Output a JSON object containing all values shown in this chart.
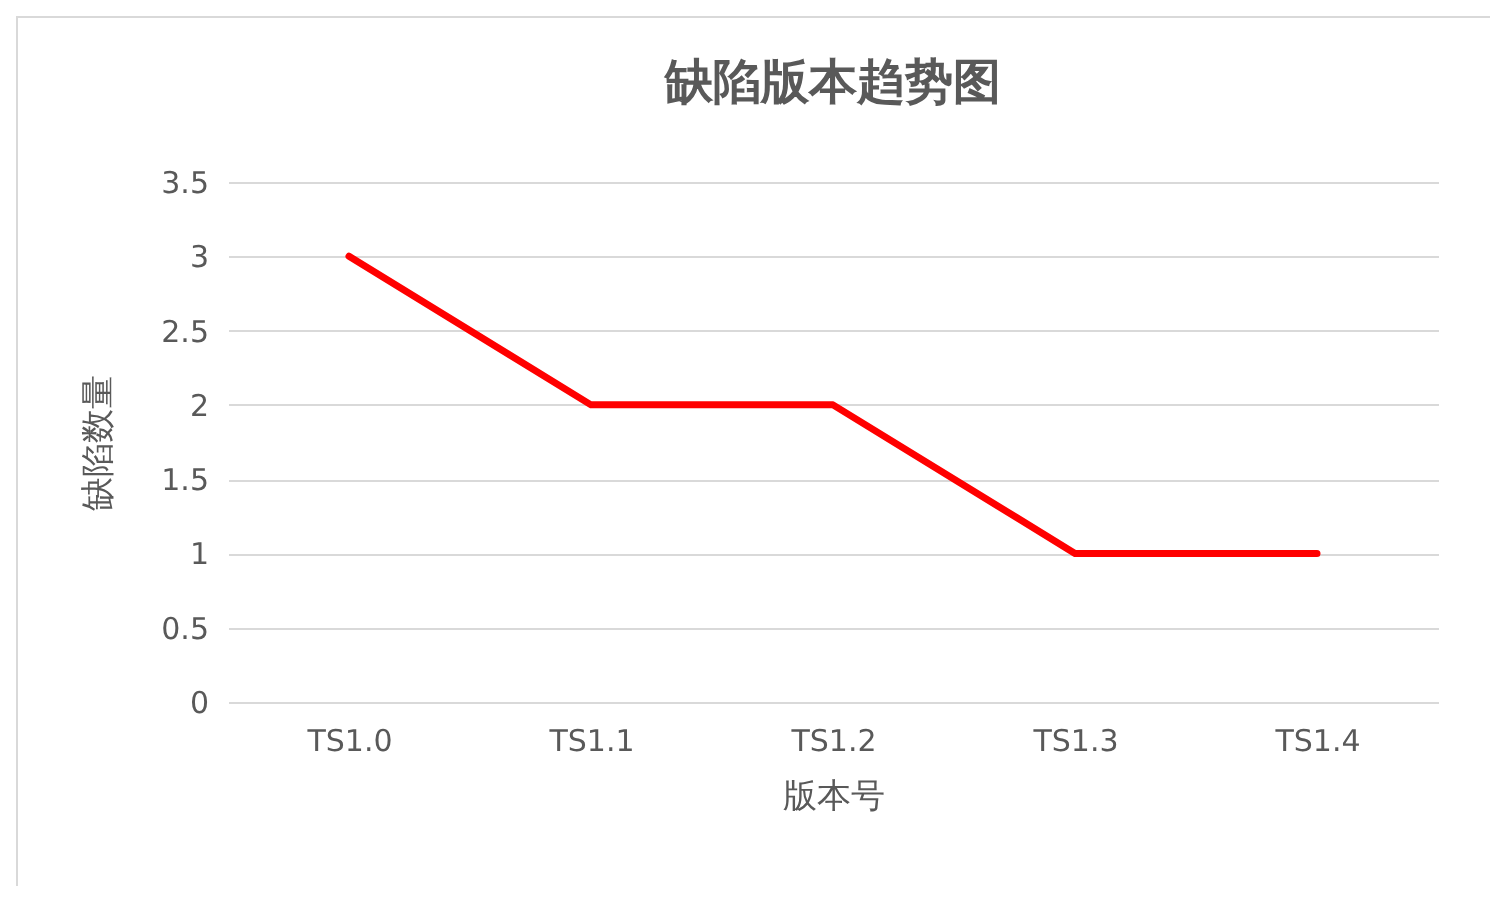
{
  "chart_data": {
    "type": "line",
    "title": "缺陷版本趋势图",
    "xlabel": "版本号",
    "ylabel": "缺陷数量",
    "categories": [
      "TS1.0",
      "TS1.1",
      "TS1.2",
      "TS1.3",
      "TS1.4"
    ],
    "series": [
      {
        "color": "#ff0000",
        "values": [
          3,
          2,
          2,
          1,
          1
        ]
      }
    ],
    "ylim": [
      0,
      3.5
    ],
    "yticks": [
      0,
      0.5,
      1,
      1.5,
      2,
      2.5,
      3,
      3.5
    ],
    "grid": "y",
    "marker": "none",
    "line_style": "solid"
  }
}
